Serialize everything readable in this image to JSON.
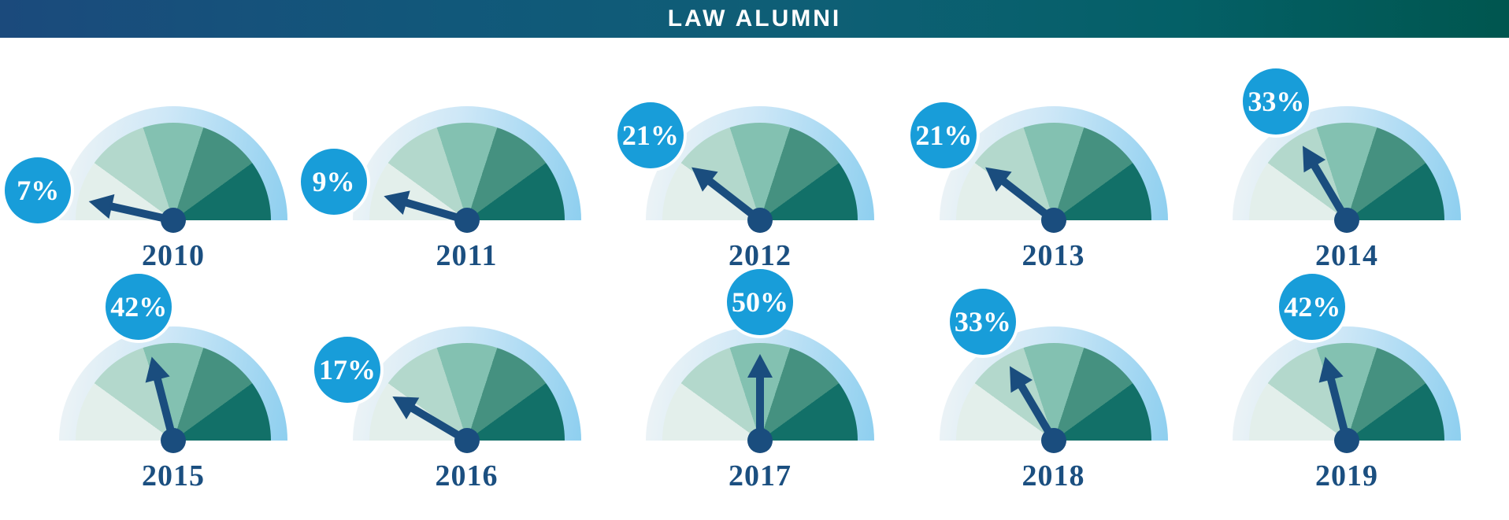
{
  "header": {
    "title": "LAW ALUMNI"
  },
  "chart_data": {
    "type": "gauge",
    "title": "LAW ALUMNI",
    "unit": "%",
    "scale": {
      "min": 0,
      "max": 100,
      "start_angle_deg": 180,
      "end_angle_deg": 0,
      "segments": 5,
      "segment_sweep_deg": 36
    },
    "layout_hint": {
      "rows": 2,
      "cols": 5,
      "legend": "none",
      "grid": "off"
    },
    "gauges": [
      {
        "year": "2010",
        "value": 7,
        "label": "7%"
      },
      {
        "year": "2011",
        "value": 9,
        "label": "9%"
      },
      {
        "year": "2012",
        "value": 21,
        "label": "21%"
      },
      {
        "year": "2013",
        "value": 21,
        "label": "21%"
      },
      {
        "year": "2014",
        "value": 33,
        "label": "33%"
      },
      {
        "year": "2015",
        "value": 42,
        "label": "42%"
      },
      {
        "year": "2016",
        "value": 17,
        "label": "17%"
      },
      {
        "year": "2017",
        "value": 50,
        "label": "50%"
      },
      {
        "year": "2018",
        "value": 33,
        "label": "33%"
      },
      {
        "year": "2019",
        "value": 42,
        "label": "42%"
      }
    ],
    "colors": {
      "segments": [
        "#e3efeb",
        "#b3d8cc",
        "#83c1b1",
        "#459180",
        "#127068"
      ],
      "arc_gradient": [
        "#f1f5f6",
        "#cde7f7",
        "#8ecfef"
      ],
      "needle": "#1a4d7e",
      "hub": "#1a4d7e",
      "badge_bg": "#189dd9",
      "badge_text": "#ffffff",
      "year_text": "#1b4f80",
      "header_left": "#1b4a7c",
      "header_right": "#00564f",
      "title_text": "#ffffff"
    }
  }
}
